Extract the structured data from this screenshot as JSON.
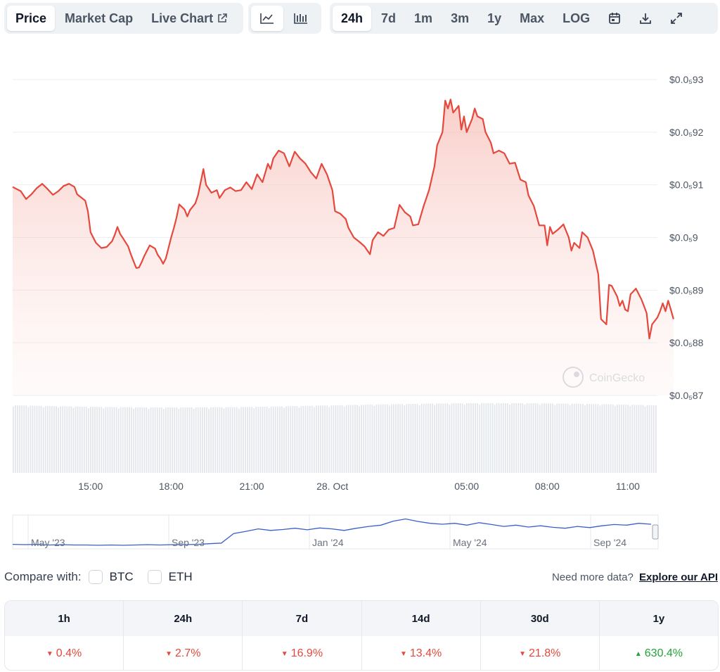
{
  "toolbar": {
    "type_tabs": [
      "Price",
      "Market Cap",
      "Live Chart"
    ],
    "active_type": "Price",
    "chart_style_icons": [
      "line-chart-icon",
      "candlestick-icon"
    ],
    "active_style": "line-chart-icon",
    "range_tabs": [
      "24h",
      "7d",
      "1m",
      "3m",
      "1y",
      "Max",
      "LOG"
    ],
    "active_range": "24h",
    "action_icons": [
      "calendar-icon",
      "download-icon",
      "expand-icon"
    ]
  },
  "chart_data": {
    "type": "area",
    "line_color": "#e5483d",
    "fill_color": "#f7c9c3",
    "y_tick_labels": [
      "$0.0₅93",
      "$0.0₅92",
      "$0.0₅91",
      "$0.0₅9",
      "$0.0₅89",
      "$0.0₅88",
      "$0.0₅87"
    ],
    "y_tick_values": [
      9.3,
      9.2,
      9.1,
      9.0,
      8.9,
      8.8,
      8.7
    ],
    "ylim": [
      8.7,
      9.3
    ],
    "y_unit_note": "values in units of $0.000001",
    "x_tick_labels": [
      "15:00",
      "18:00",
      "21:00",
      "28. Oct",
      "05:00",
      "08:00",
      "11:00"
    ],
    "x_tick_hours": [
      2.9,
      5.9,
      8.9,
      11.9,
      16.9,
      19.9,
      22.9
    ],
    "xlim": [
      0,
      24
    ],
    "series": [
      {
        "points": [
          [
            0.0,
            9.096
          ],
          [
            0.3,
            9.088
          ],
          [
            0.5,
            9.073
          ],
          [
            0.7,
            9.082
          ],
          [
            0.9,
            9.094
          ],
          [
            1.1,
            9.102
          ],
          [
            1.3,
            9.092
          ],
          [
            1.5,
            9.081
          ],
          [
            1.7,
            9.088
          ],
          [
            1.9,
            9.098
          ],
          [
            2.1,
            9.102
          ],
          [
            2.3,
            9.096
          ],
          [
            2.4,
            9.082
          ],
          [
            2.5,
            9.078
          ],
          [
            2.7,
            9.07
          ],
          [
            2.8,
            9.05
          ],
          [
            2.9,
            9.01
          ],
          [
            3.1,
            8.99
          ],
          [
            3.3,
            8.98
          ],
          [
            3.5,
            8.982
          ],
          [
            3.7,
            8.993
          ],
          [
            3.8,
            9.005
          ],
          [
            3.9,
            9.02
          ],
          [
            4.0,
            9.007
          ],
          [
            4.1,
            8.999
          ],
          [
            4.3,
            8.983
          ],
          [
            4.4,
            8.968
          ],
          [
            4.5,
            8.955
          ],
          [
            4.6,
            8.942
          ],
          [
            4.7,
            8.943
          ],
          [
            4.8,
            8.953
          ],
          [
            4.9,
            8.965
          ],
          [
            5.1,
            8.985
          ],
          [
            5.3,
            8.979
          ],
          [
            5.4,
            8.967
          ],
          [
            5.5,
            8.96
          ],
          [
            5.6,
            8.95
          ],
          [
            5.7,
            8.96
          ],
          [
            5.8,
            8.98
          ],
          [
            5.9,
            9.0
          ],
          [
            6.0,
            9.018
          ],
          [
            6.1,
            9.038
          ],
          [
            6.2,
            9.063
          ],
          [
            6.4,
            9.053
          ],
          [
            6.5,
            9.04
          ],
          [
            6.6,
            9.052
          ],
          [
            6.8,
            9.065
          ],
          [
            6.9,
            9.08
          ],
          [
            7.1,
            9.13
          ],
          [
            7.2,
            9.1
          ],
          [
            7.4,
            9.085
          ],
          [
            7.6,
            9.09
          ],
          [
            7.7,
            9.075
          ],
          [
            7.9,
            9.09
          ],
          [
            8.1,
            9.095
          ],
          [
            8.3,
            9.088
          ],
          [
            8.5,
            9.09
          ],
          [
            8.7,
            9.105
          ],
          [
            8.9,
            9.092
          ],
          [
            9.1,
            9.12
          ],
          [
            9.3,
            9.105
          ],
          [
            9.5,
            9.14
          ],
          [
            9.6,
            9.13
          ],
          [
            9.7,
            9.15
          ],
          [
            9.9,
            9.165
          ],
          [
            10.1,
            9.16
          ],
          [
            10.3,
            9.135
          ],
          [
            10.5,
            9.163
          ],
          [
            10.7,
            9.15
          ],
          [
            10.9,
            9.14
          ],
          [
            11.1,
            9.124
          ],
          [
            11.3,
            9.112
          ],
          [
            11.5,
            9.14
          ],
          [
            11.7,
            9.12
          ],
          [
            11.9,
            9.09
          ],
          [
            12.0,
            9.05
          ],
          [
            12.2,
            9.045
          ],
          [
            12.4,
            9.035
          ],
          [
            12.5,
            9.018
          ],
          [
            12.7,
            9.0
          ],
          [
            12.9,
            8.992
          ],
          [
            13.1,
            8.983
          ],
          [
            13.3,
            8.968
          ],
          [
            13.4,
            8.995
          ],
          [
            13.6,
            9.01
          ],
          [
            13.8,
            9.003
          ],
          [
            14.0,
            9.015
          ],
          [
            14.2,
            9.018
          ],
          [
            14.4,
            9.062
          ],
          [
            14.6,
            9.048
          ],
          [
            14.8,
            9.04
          ],
          [
            14.9,
            9.023
          ],
          [
            15.1,
            9.025
          ],
          [
            15.3,
            9.06
          ],
          [
            15.5,
            9.09
          ],
          [
            15.7,
            9.135
          ],
          [
            15.8,
            9.175
          ],
          [
            16.0,
            9.2
          ],
          [
            16.1,
            9.26
          ],
          [
            16.2,
            9.245
          ],
          [
            16.3,
            9.262
          ],
          [
            16.4,
            9.237
          ],
          [
            16.6,
            9.25
          ],
          [
            16.7,
            9.205
          ],
          [
            16.8,
            9.23
          ],
          [
            16.9,
            9.2
          ],
          [
            17.1,
            9.225
          ],
          [
            17.2,
            9.245
          ],
          [
            17.3,
            9.23
          ],
          [
            17.5,
            9.225
          ],
          [
            17.6,
            9.2
          ],
          [
            17.8,
            9.18
          ],
          [
            17.9,
            9.16
          ],
          [
            18.1,
            9.165
          ],
          [
            18.3,
            9.16
          ],
          [
            18.5,
            9.14
          ],
          [
            18.7,
            9.142
          ],
          [
            18.9,
            9.11
          ],
          [
            19.1,
            9.105
          ],
          [
            19.2,
            9.08
          ],
          [
            19.4,
            9.06
          ],
          [
            19.6,
            9.023
          ],
          [
            19.8,
            9.023
          ],
          [
            19.9,
            8.985
          ],
          [
            20.0,
            9.02
          ],
          [
            20.1,
            9.007
          ],
          [
            20.3,
            9.015
          ],
          [
            20.5,
            9.025
          ],
          [
            20.7,
            9.0
          ],
          [
            20.8,
            8.975
          ],
          [
            20.9,
            8.99
          ],
          [
            21.1,
            8.98
          ],
          [
            21.2,
            9.01
          ],
          [
            21.4,
            9.0
          ],
          [
            21.6,
            8.975
          ],
          [
            21.8,
            8.93
          ],
          [
            21.9,
            8.845
          ],
          [
            22.1,
            8.835
          ],
          [
            22.2,
            8.91
          ],
          [
            22.3,
            8.908
          ],
          [
            22.5,
            8.888
          ],
          [
            22.6,
            8.87
          ],
          [
            22.7,
            8.88
          ],
          [
            22.8,
            8.863
          ],
          [
            22.9,
            8.86
          ],
          [
            23.0,
            8.892
          ],
          [
            23.2,
            8.903
          ],
          [
            23.4,
            8.883
          ],
          [
            23.5,
            8.87
          ],
          [
            23.6,
            8.856
          ],
          [
            23.7,
            8.808
          ],
          [
            23.8,
            8.835
          ],
          [
            24.0,
            8.848
          ],
          [
            24.1,
            8.86
          ],
          [
            24.2,
            8.875
          ],
          [
            24.3,
            8.86
          ],
          [
            24.4,
            8.88
          ],
          [
            24.5,
            8.863
          ],
          [
            24.6,
            8.845
          ]
        ]
      }
    ],
    "volume_bar_color": "#e3e6ea",
    "watermark": "CoinGecko"
  },
  "range_brush": {
    "labels": [
      "May '23",
      "Sep '23",
      "Jan '24",
      "May '24",
      "Sep '24"
    ],
    "line_color": "#3a5fc8",
    "series": [
      0.1,
      0.09,
      0.1,
      0.08,
      0.09,
      0.08,
      0.08,
      0.07,
      0.08,
      0.07,
      0.08,
      0.09,
      0.08,
      0.09,
      0.09,
      0.1,
      0.12,
      0.14,
      0.45,
      0.52,
      0.6,
      0.55,
      0.58,
      0.62,
      0.57,
      0.63,
      0.6,
      0.55,
      0.62,
      0.68,
      0.72,
      0.85,
      0.92,
      0.84,
      0.78,
      0.75,
      0.78,
      0.72,
      0.8,
      0.74,
      0.68,
      0.72,
      0.66,
      0.7,
      0.65,
      0.62,
      0.68,
      0.64,
      0.7,
      0.74,
      0.72,
      0.78,
      0.75
    ]
  },
  "compare": {
    "label": "Compare with:",
    "options": [
      "BTC",
      "ETH"
    ]
  },
  "api": {
    "prompt": "Need more data?",
    "link": "Explore our API"
  },
  "performance": {
    "headers": [
      "1h",
      "24h",
      "7d",
      "14d",
      "30d",
      "1y"
    ],
    "values": [
      "0.4%",
      "2.7%",
      "16.9%",
      "13.4%",
      "21.8%",
      "630.4%"
    ],
    "directions": [
      "down",
      "down",
      "down",
      "down",
      "down",
      "up"
    ]
  }
}
